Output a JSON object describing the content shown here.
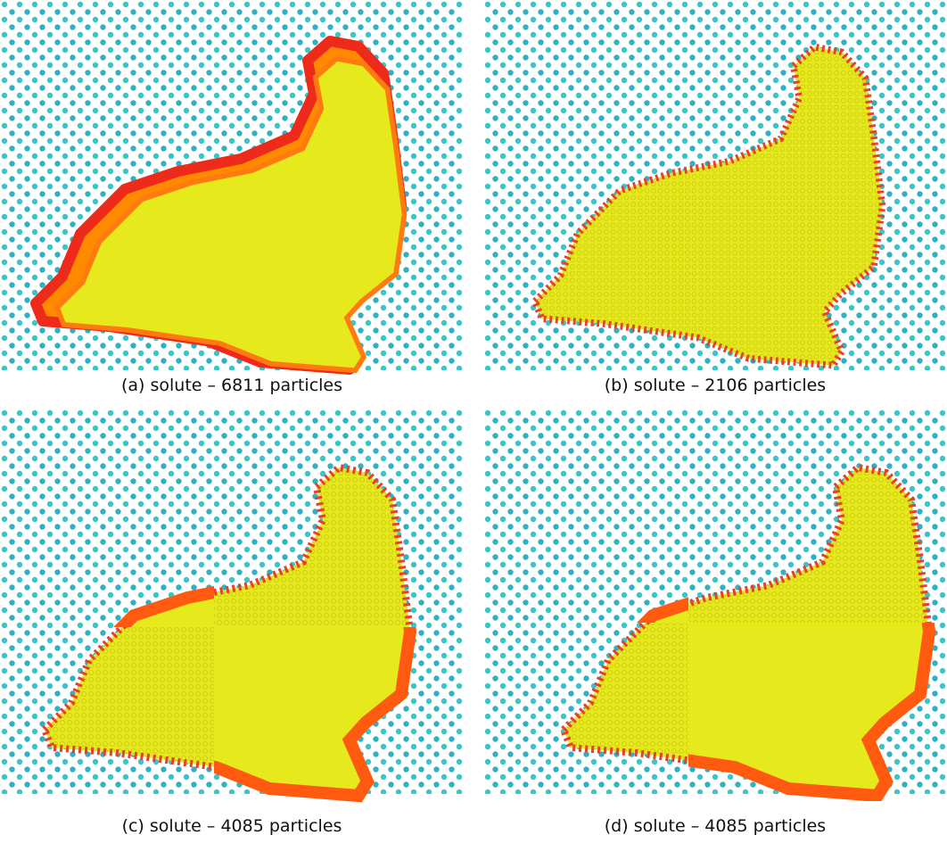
{
  "figure": {
    "panels": [
      {
        "caption": "(a) solute – 6811 particles"
      },
      {
        "caption": "(b) solute – 2106 particles"
      },
      {
        "caption": "(c) solute – 4085 particles"
      },
      {
        "caption": "(d) solute – 4085 particles"
      }
    ]
  }
}
